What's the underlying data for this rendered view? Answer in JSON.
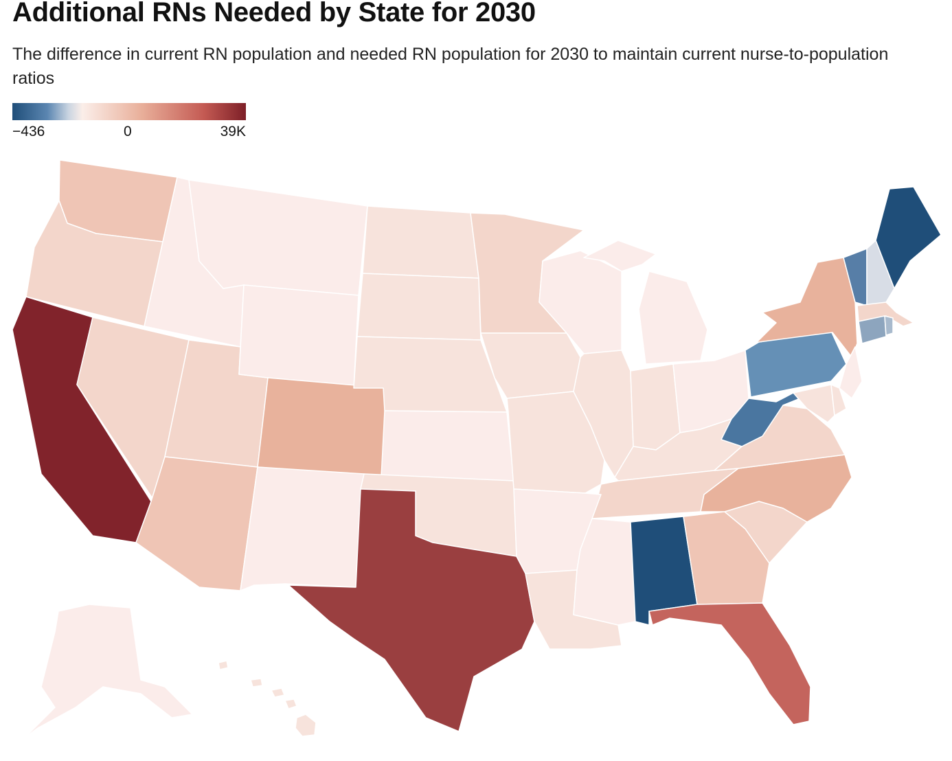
{
  "header": {
    "title": "Additional RNs Needed by State for 2030",
    "subtitle": "The difference in current RN population and needed RN population for 2030 to maintain current nurse-to-population ratios"
  },
  "legend": {
    "min_label": "−436",
    "mid_label": "0",
    "max_label": "39K",
    "colors": [
      "#1f4e79",
      "#5b86b1",
      "#c9d4e1",
      "#fbeee9",
      "#e9b09b",
      "#c45a53",
      "#7d1f27"
    ]
  },
  "colors": {
    "california": "#81232b",
    "texas": "#9a3f40",
    "florida": "#c4645d",
    "alabama": "#1f4e79",
    "maine": "#1f4e79",
    "west_virginia": "#4a76a0",
    "pennsylvania": "#6590b6",
    "vermont": "#577ea7",
    "new_hampshire": "#d8dde6",
    "connecticut": "#8da5be",
    "rhode_island": "#a8bacd",
    "high": "#e8b29c",
    "mid_high": "#efc5b5",
    "mid": "#f3d6cb",
    "low": "#f7e3dc",
    "very_low": "#fbecea"
  }
}
